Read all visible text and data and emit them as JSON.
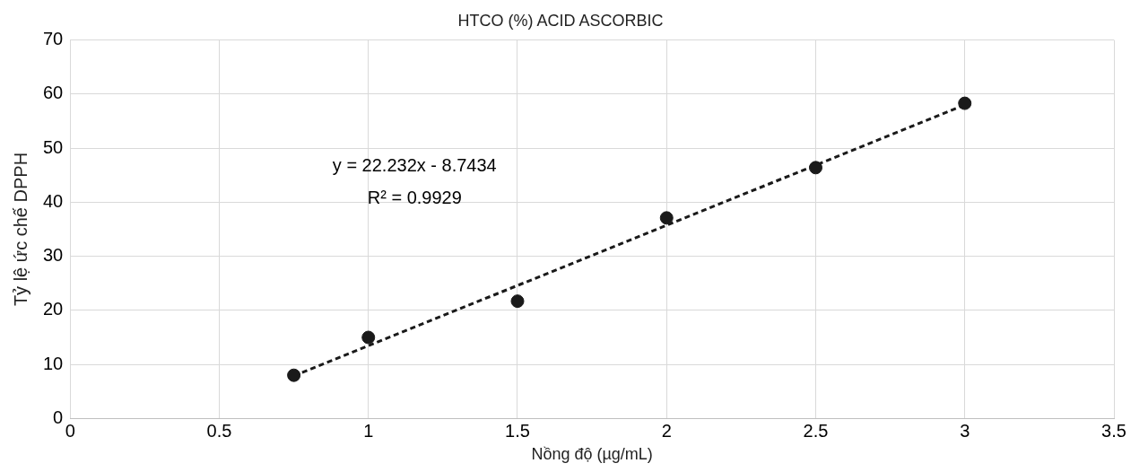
{
  "chart_data": {
    "type": "scatter",
    "title": "HTCO (%) ACID ASCORBIC",
    "xlabel": "Nồng độ (µg/mL)",
    "ylabel": "Tỷ lệ ức chế DPPH",
    "xlim": [
      0,
      3.5
    ],
    "xticks": [
      0,
      0.5,
      1,
      1.5,
      2,
      2.5,
      3,
      3.5
    ],
    "ylim": [
      0,
      70
    ],
    "yticks": [
      0,
      10,
      20,
      30,
      40,
      50,
      60,
      70
    ],
    "grid": true,
    "legend": false,
    "marker": "circle",
    "annotations": [
      "y = 22.232x - 8.7434",
      "R² = 0.9929"
    ],
    "series": [
      {
        "color": "#1a1a1a",
        "x": [
          0.75,
          1,
          1.5,
          2,
          2.5,
          3
        ],
        "values": [
          8.0,
          15.0,
          21.7,
          37.1,
          46.4,
          58.3
        ]
      },
      {
        "type": "line",
        "color": "#1a1a1a",
        "line_style": "dashed",
        "marker": "none",
        "x": [
          0.75,
          3
        ],
        "values": [
          7.9,
          58.0
        ]
      }
    ]
  }
}
